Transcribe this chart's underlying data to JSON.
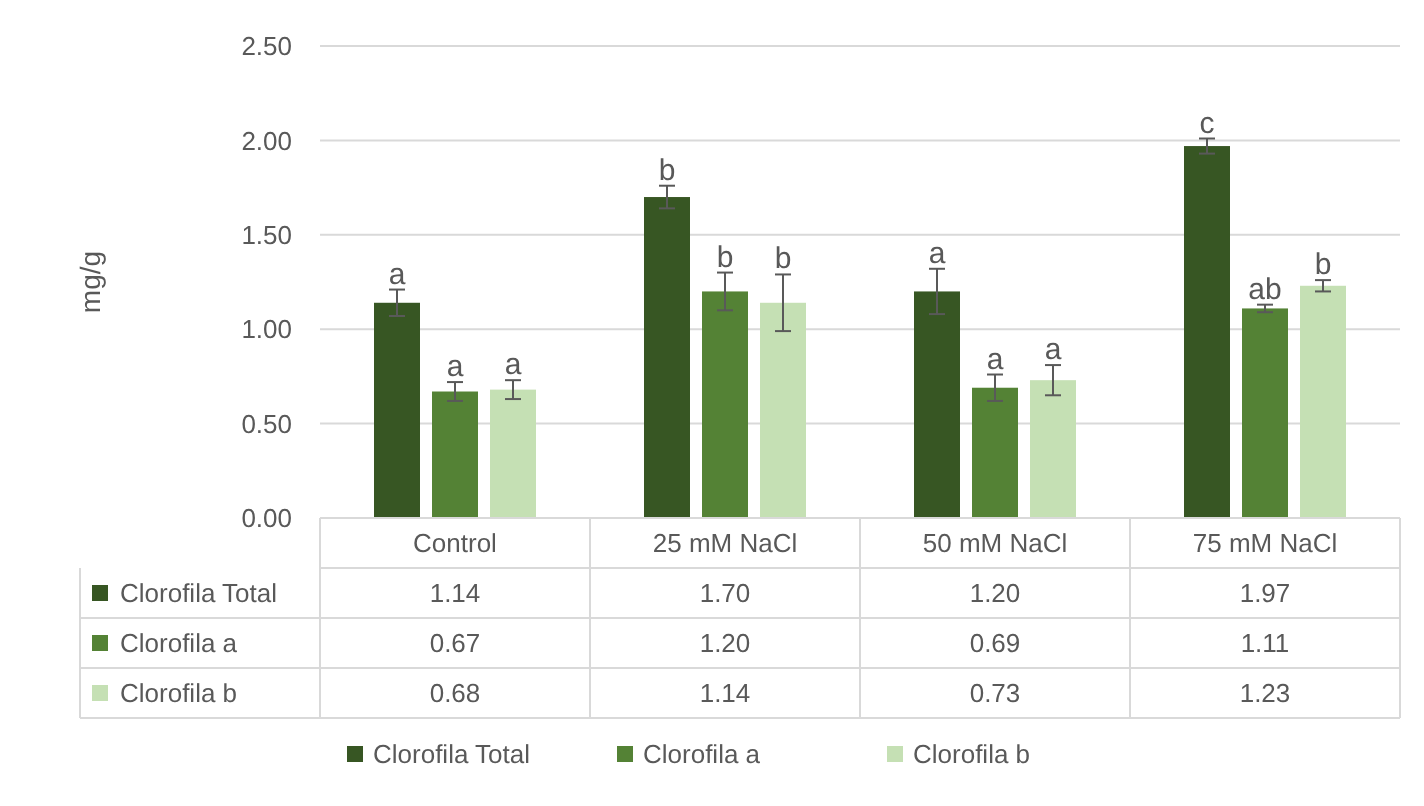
{
  "chart_data": {
    "type": "bar",
    "ylabel": "mg/g",
    "categories": [
      "Control",
      "25 mM NaCl",
      "50 mM NaCl",
      "75 mM NaCl"
    ],
    "series": [
      {
        "name": "Clorofila Total",
        "color": "#375623",
        "values": [
          1.14,
          1.7,
          1.2,
          1.97
        ],
        "errors": [
          0.07,
          0.06,
          0.12,
          0.04
        ],
        "value_labels": [
          "1.14",
          "1.70",
          "1.20",
          "1.97"
        ]
      },
      {
        "name": "Clorofila a",
        "color": "#548235",
        "values": [
          0.67,
          1.2,
          0.69,
          1.11
        ],
        "errors": [
          0.05,
          0.1,
          0.07,
          0.02
        ],
        "value_labels": [
          "0.67",
          "1.20",
          "0.69",
          "1.11"
        ]
      },
      {
        "name": "Clorofila b",
        "color": "#c5e0b4",
        "values": [
          0.68,
          1.14,
          0.73,
          1.23
        ],
        "errors": [
          0.05,
          0.15,
          0.08,
          0.03
        ],
        "value_labels": [
          "0.68",
          "1.14",
          "0.73",
          "1.23"
        ]
      }
    ],
    "ylim": [
      0,
      2.5
    ],
    "yticks": [
      {
        "value": 0,
        "label": "0.00"
      },
      {
        "value": 0.5,
        "label": "0.50"
      },
      {
        "value": 1,
        "label": "1.00"
      },
      {
        "value": 1.5,
        "label": "1.50"
      },
      {
        "value": 2,
        "label": "2.00"
      },
      {
        "value": 2.5,
        "label": "2.50"
      }
    ],
    "grid": "y",
    "legend": "bottom",
    "annotations": [
      "a",
      "a",
      "a",
      "b",
      "b",
      "b",
      "a",
      "a",
      "a",
      "c",
      "ab",
      "b"
    ]
  }
}
